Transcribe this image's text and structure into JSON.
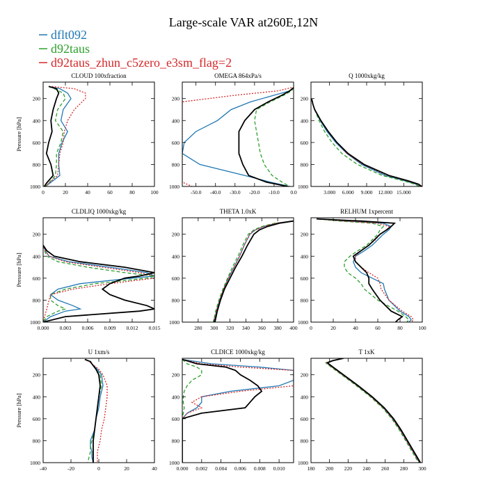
{
  "title": "Large-scale VAR at260E,12N",
  "legend": [
    {
      "name": "dflt092",
      "color": "#1f77b4"
    },
    {
      "name": "d92taus",
      "color": "#2ca02c"
    },
    {
      "name": "d92taus_zhun_c5zero_e3sm_flag=2",
      "color": "#d62728"
    }
  ],
  "colors": {
    "control": "#000000"
  },
  "chart_data": [
    {
      "type": "line",
      "title": "CLOUD  100xfraction",
      "ylabel": "Pressure [hPa]",
      "xlim": [
        0,
        100
      ],
      "ylim": [
        1000,
        50
      ],
      "xticks": [
        "0",
        "20",
        "40",
        "60",
        "80",
        "100"
      ],
      "yticks": [
        "200",
        "400",
        "600",
        "800",
        "1000"
      ],
      "p": [
        90,
        110,
        150,
        200,
        300,
        400,
        500,
        600,
        700,
        800,
        900,
        970,
        1000
      ],
      "series": [
        {
          "name": "dflt092",
          "x": [
            5,
            15,
            22,
            25,
            18,
            16,
            22,
            17,
            14,
            14,
            15,
            6,
            2
          ]
        },
        {
          "name": "d92taus",
          "x": [
            5,
            10,
            18,
            20,
            13,
            11,
            18,
            16,
            12,
            12,
            11,
            5,
            2
          ]
        },
        {
          "name": "d92taus_zhun_c5zero_e3sm_flag=2",
          "x": [
            8,
            28,
            38,
            38,
            28,
            22,
            19,
            18,
            15,
            14,
            13,
            5,
            2
          ]
        },
        {
          "name": "",
          "x": [
            5,
            12,
            14,
            12,
            9,
            7,
            8,
            5,
            3,
            7,
            9,
            3,
            1
          ]
        }
      ]
    },
    {
      "type": "line",
      "title": "OMEGA  864xPa/s",
      "ylabel": "",
      "xlim": [
        -57,
        0
      ],
      "ylim": [
        1000,
        50
      ],
      "xticks": [
        "-50.0",
        "-40.0",
        "-30.0",
        "-20.0",
        "-10.0",
        "0.0"
      ],
      "yticks": [
        "200",
        "400",
        "600",
        "800",
        "1000"
      ],
      "p": [
        100,
        130,
        170,
        230,
        300,
        400,
        500,
        600,
        700,
        800,
        900,
        960,
        1000
      ],
      "series": [
        {
          "name": "dflt092",
          "x": [
            0,
            -2,
            -10,
            -22,
            -32,
            -39,
            -50,
            -56,
            -57,
            -48,
            -25,
            -12,
            -2
          ]
        },
        {
          "name": "d92taus",
          "x": [
            0,
            -1,
            -5,
            -12,
            -19,
            -20,
            -19,
            -18,
            -17,
            -15,
            -11,
            -6,
            -2
          ]
        },
        {
          "name": "d92taus_zhun_c5zero_e3sm_flag=2",
          "x": [
            -1,
            -8,
            -30,
            -57,
            -57,
            -57,
            -57,
            -57,
            -57,
            -57,
            -57,
            -57,
            -52
          ]
        },
        {
          "name": "",
          "x": [
            0,
            -2,
            -6,
            -13,
            -20,
            -25,
            -28,
            -28,
            -28,
            -26,
            -23,
            -14,
            -3
          ]
        }
      ]
    },
    {
      "type": "line",
      "title": "Q  1000xkg/kg",
      "ylabel": "",
      "xlim": [
        0,
        18
      ],
      "ylim": [
        1000,
        50
      ],
      "xticks": [
        "3.000",
        "6.000",
        "9.000",
        "12.000",
        "15.000"
      ],
      "yticks": [
        "200",
        "400",
        "600",
        "800",
        "1000"
      ],
      "p": [
        200,
        250,
        300,
        400,
        500,
        600,
        700,
        800,
        900,
        950,
        980,
        1000
      ],
      "series": [
        {
          "name": "dflt092",
          "x": [
            0.1,
            0.3,
            0.6,
            1.5,
            2.6,
            4.0,
            5.8,
            8.2,
            12.0,
            15.3,
            17.0,
            17.6
          ]
        },
        {
          "name": "d92taus",
          "x": [
            0.1,
            0.3,
            0.6,
            1.3,
            2.2,
            3.4,
            5.0,
            7.5,
            11.5,
            15.0,
            16.8,
            17.5
          ]
        },
        {
          "name": "d92taus_zhun_c5zero_e3sm_flag=2",
          "x": [
            0.1,
            0.3,
            0.6,
            1.6,
            2.8,
            4.2,
            5.8,
            8.4,
            12.4,
            15.6,
            17.2,
            17.8
          ]
        },
        {
          "name": "",
          "x": [
            0.1,
            0.3,
            0.6,
            1.6,
            2.8,
            4.2,
            6.0,
            8.6,
            12.6,
            15.8,
            17.4,
            17.9
          ]
        }
      ]
    },
    {
      "type": "line",
      "title": "CLDLIQ  1000xkg/kg",
      "ylabel": "Pressure [hPa]",
      "xlim": [
        0,
        0.015
      ],
      "ylim": [
        1000,
        50
      ],
      "xticks": [
        "0.000",
        "0.003",
        "0.006",
        "0.009",
        "0.012",
        "0.015"
      ],
      "yticks": [
        "200",
        "400",
        "600",
        "800",
        "1000"
      ],
      "p": [
        300,
        350,
        400,
        450,
        500,
        550,
        580,
        600,
        650,
        700,
        750,
        800,
        850,
        880,
        900,
        950,
        1000
      ],
      "series": [
        {
          "name": "dflt092",
          "x": [
            0,
            0.0003,
            0.0008,
            0.0035,
            0.009,
            0.014,
            0.015,
            0.012,
            0.005,
            0.002,
            0.001,
            0.002,
            0.004,
            0.005,
            0.003,
            0.001,
            0
          ]
        },
        {
          "name": "d92taus",
          "x": [
            0,
            0.0002,
            0.0005,
            0.002,
            0.006,
            0.011,
            0.015,
            0.014,
            0.007,
            0.003,
            0.001,
            0.001,
            0.002,
            0.003,
            0.002,
            0.0005,
            0
          ]
        },
        {
          "name": "d92taus_zhun_c5zero_e3sm_flag=2",
          "x": [
            0,
            0.0003,
            0.0008,
            0.003,
            0.008,
            0.013,
            0.015,
            0.015,
            0.009,
            0.004,
            0.001,
            0.0008,
            0.0006,
            0.0005,
            0.0004,
            0.0002,
            0
          ]
        },
        {
          "name": "",
          "x": [
            0,
            0.0005,
            0.0015,
            0.005,
            0.011,
            0.015,
            0.013,
            0.011,
            0.009,
            0.008,
            0.009,
            0.011,
            0.014,
            0.015,
            0.013,
            0.003,
            0
          ]
        }
      ]
    },
    {
      "type": "line",
      "title": "THETA  1.0xK",
      "ylabel": "",
      "xlim": [
        260,
        400
      ],
      "ylim": [
        1000,
        50
      ],
      "xticks": [
        "280",
        "300",
        "320",
        "340",
        "360",
        "380",
        "400"
      ],
      "yticks": [
        "200",
        "400",
        "600",
        "800",
        "1000"
      ],
      "p": [
        80,
        100,
        130,
        160,
        200,
        300,
        400,
        500,
        600,
        700,
        800,
        900,
        1000
      ],
      "series": [
        {
          "name": "dflt092",
          "x": [
            398,
            378,
            362,
            352,
            345,
            338,
            332,
            325,
            318,
            312,
            307,
            303,
            300
          ]
        },
        {
          "name": "d92taus",
          "x": [
            398,
            376,
            360,
            350,
            343,
            336,
            330,
            323,
            317,
            311,
            306,
            302,
            299
          ]
        },
        {
          "name": "d92taus_zhun_c5zero_e3sm_flag=2",
          "x": [
            398,
            378,
            362,
            352,
            345,
            338,
            332,
            325,
            318,
            312,
            307,
            303,
            300
          ]
        },
        {
          "name": "",
          "x": [
            400,
            382,
            367,
            357,
            350,
            342,
            335,
            327,
            320,
            313,
            308,
            304,
            301
          ]
        }
      ]
    },
    {
      "type": "line",
      "title": "RELHUM  1xpercent",
      "ylabel": "",
      "xlim": [
        0,
        100
      ],
      "ylim": [
        1000,
        50
      ],
      "xticks": [
        "0",
        "20",
        "40",
        "60",
        "80",
        "100"
      ],
      "yticks": [
        "200",
        "400",
        "600",
        "800",
        "1000"
      ],
      "p": [
        60,
        80,
        100,
        130,
        160,
        200,
        250,
        300,
        350,
        400,
        450,
        500,
        550,
        600,
        650,
        700,
        800,
        900,
        950,
        980,
        1000
      ],
      "series": [
        {
          "name": "dflt092",
          "x": [
            5,
            30,
            65,
            72,
            70,
            65,
            60,
            55,
            48,
            40,
            38,
            40,
            45,
            55,
            65,
            66,
            70,
            80,
            88,
            90,
            88
          ]
        },
        {
          "name": "d92taus",
          "x": [
            5,
            25,
            55,
            65,
            62,
            60,
            55,
            50,
            42,
            35,
            30,
            30,
            33,
            40,
            45,
            48,
            60,
            78,
            85,
            88,
            86
          ]
        },
        {
          "name": "d92taus_zhun_c5zero_e3sm_flag=2",
          "x": [
            5,
            30,
            60,
            70,
            68,
            62,
            58,
            52,
            45,
            40,
            40,
            45,
            52,
            60,
            62,
            63,
            70,
            82,
            90,
            92,
            90
          ]
        },
        {
          "name": "",
          "x": [
            5,
            45,
            75,
            72,
            68,
            62,
            57,
            52,
            45,
            38,
            40,
            45,
            50,
            52,
            52,
            55,
            62,
            72,
            82,
            78,
            76
          ]
        }
      ]
    },
    {
      "type": "line",
      "title": "U  1xm/s",
      "ylabel": "Pressure [hPa]",
      "xlim": [
        -40,
        40
      ],
      "ylim": [
        1000,
        50
      ],
      "xticks": [
        "-40",
        "-20",
        "0",
        "20",
        "40"
      ],
      "yticks": [
        "200",
        "400",
        "600",
        "800",
        "1000"
      ],
      "p": [
        60,
        80,
        100,
        150,
        200,
        300,
        400,
        500,
        600,
        700,
        800,
        850,
        900,
        950,
        1000
      ],
      "series": [
        {
          "name": "dflt092",
          "x": [
            -10,
            -6,
            -5,
            -1,
            2,
            3,
            1,
            0,
            -2,
            -3,
            -6,
            -6,
            -5,
            -5,
            -4
          ]
        },
        {
          "name": "d92taus",
          "x": [
            -10,
            -6,
            -5,
            -2,
            1,
            2,
            0,
            -1,
            -2,
            -3,
            -5,
            -6,
            -6,
            -7,
            -8
          ]
        },
        {
          "name": "d92taus_zhun_c5zero_e3sm_flag=2",
          "x": [
            -10,
            -7,
            -5,
            0,
            3,
            6,
            6,
            5,
            4,
            2,
            1,
            0,
            -1,
            -1,
            -1
          ]
        },
        {
          "name": "",
          "x": [
            -10,
            -6,
            -5,
            -2,
            0,
            1,
            0,
            -1,
            -2,
            -3,
            -4,
            -4,
            -4,
            -4,
            -4
          ]
        }
      ]
    },
    {
      "type": "line",
      "title": "CLDICE  1000xkg/kg",
      "ylabel": "",
      "xlim": [
        0,
        0.0115
      ],
      "ylim": [
        1000,
        50
      ],
      "xticks": [
        "0.000",
        "0.002",
        "0.004",
        "0.006",
        "0.008",
        "0.010"
      ],
      "yticks": [
        "200",
        "400",
        "600",
        "800",
        "1000"
      ],
      "p": [
        60,
        100,
        130,
        160,
        200,
        250,
        300,
        350,
        400,
        450,
        500,
        550,
        600,
        650,
        1000
      ],
      "series": [
        {
          "name": "dflt092",
          "x": [
            0,
            0.003,
            0.008,
            0.0115,
            0.0115,
            0.0115,
            0.01,
            0.005,
            0.002,
            0.002,
            0.0015,
            0.0005,
            0,
            0,
            0
          ]
        },
        {
          "name": "d92taus",
          "x": [
            0,
            0.0005,
            0.0015,
            0.002,
            0.002,
            0.001,
            0.0005,
            0.0002,
            0.0001,
            0.0001,
            0.0002,
            0.0001,
            0,
            0,
            0
          ]
        },
        {
          "name": "d92taus_zhun_c5zero_e3sm_flag=2",
          "x": [
            0,
            0.002,
            0.006,
            0.0115,
            0.0115,
            0.0115,
            0.0115,
            0.006,
            0.002,
            0.001,
            0.002,
            0.0005,
            0,
            0,
            0
          ]
        },
        {
          "name": "",
          "x": [
            0,
            0.0015,
            0.0045,
            0.0055,
            0.006,
            0.007,
            0.0078,
            0.0082,
            0.0075,
            0.007,
            0.0065,
            0.002,
            0,
            0,
            0
          ]
        }
      ]
    },
    {
      "type": "line",
      "title": "T  1xK",
      "ylabel": "",
      "xlim": [
        180,
        300
      ],
      "ylim": [
        1000,
        50
      ],
      "xticks": [
        "180",
        "200",
        "220",
        "240",
        "260",
        "280",
        "300"
      ],
      "yticks": [
        "200",
        "400",
        "600",
        "800",
        "1000"
      ],
      "p": [
        50,
        70,
        90,
        100,
        150,
        200,
        300,
        400,
        500,
        600,
        700,
        800,
        900,
        1000
      ],
      "series": [
        {
          "name": "dflt092",
          "x": [
            215,
            203,
            197,
            198,
            206,
            214,
            230,
            245,
            258,
            268,
            276,
            283,
            290,
            297
          ]
        },
        {
          "name": "d92taus",
          "x": [
            215,
            203,
            196,
            197,
            205,
            213,
            229,
            244,
            257,
            267,
            275,
            282,
            289,
            296
          ]
        },
        {
          "name": "d92taus_zhun_c5zero_e3sm_flag=2",
          "x": [
            215,
            203,
            197,
            198,
            206,
            214,
            230,
            245,
            258,
            268,
            276,
            283,
            290,
            297
          ]
        },
        {
          "name": "",
          "x": [
            215,
            204,
            198,
            199,
            207,
            215,
            231,
            246,
            259,
            269,
            277,
            284,
            291,
            298
          ]
        }
      ]
    }
  ]
}
